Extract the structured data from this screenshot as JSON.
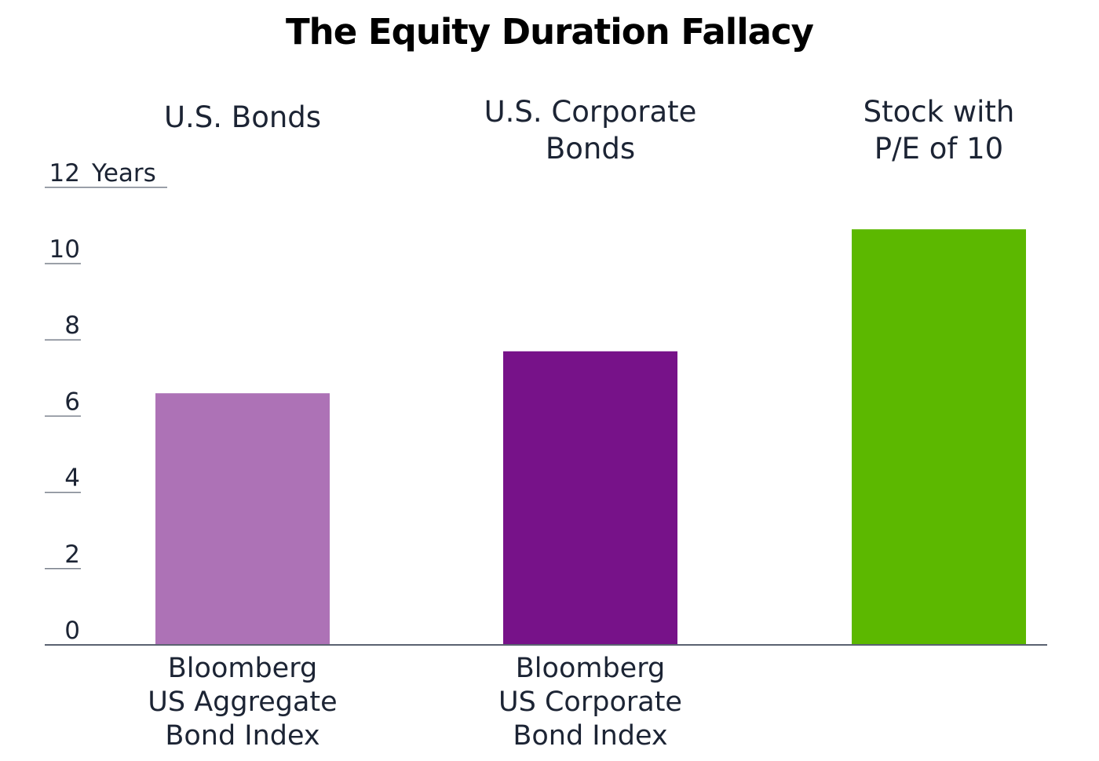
{
  "chart_data": {
    "type": "bar",
    "title": "The Equity Duration Fallacy",
    "ylabel": "Years",
    "ylim": [
      0,
      12
    ],
    "yticks": [
      "0",
      "2",
      "4",
      "6",
      "8",
      "10",
      "12"
    ],
    "grid": false,
    "categories": [
      {
        "header": [
          "U.S. Bonds"
        ],
        "sublabel": [
          "Bloomberg",
          "US Aggregate",
          "Bond Index"
        ],
        "value": 6.6,
        "color": "#ad72b6"
      },
      {
        "header": [
          "U.S. Corporate",
          "Bonds"
        ],
        "sublabel": [
          "Bloomberg",
          "US Corporate",
          "Bond Index"
        ],
        "value": 7.7,
        "color": "#771289"
      },
      {
        "header": [
          "Stock with",
          "P/E of 10"
        ],
        "sublabel": [],
        "value": 10.9,
        "color": "#5cb800"
      }
    ]
  }
}
